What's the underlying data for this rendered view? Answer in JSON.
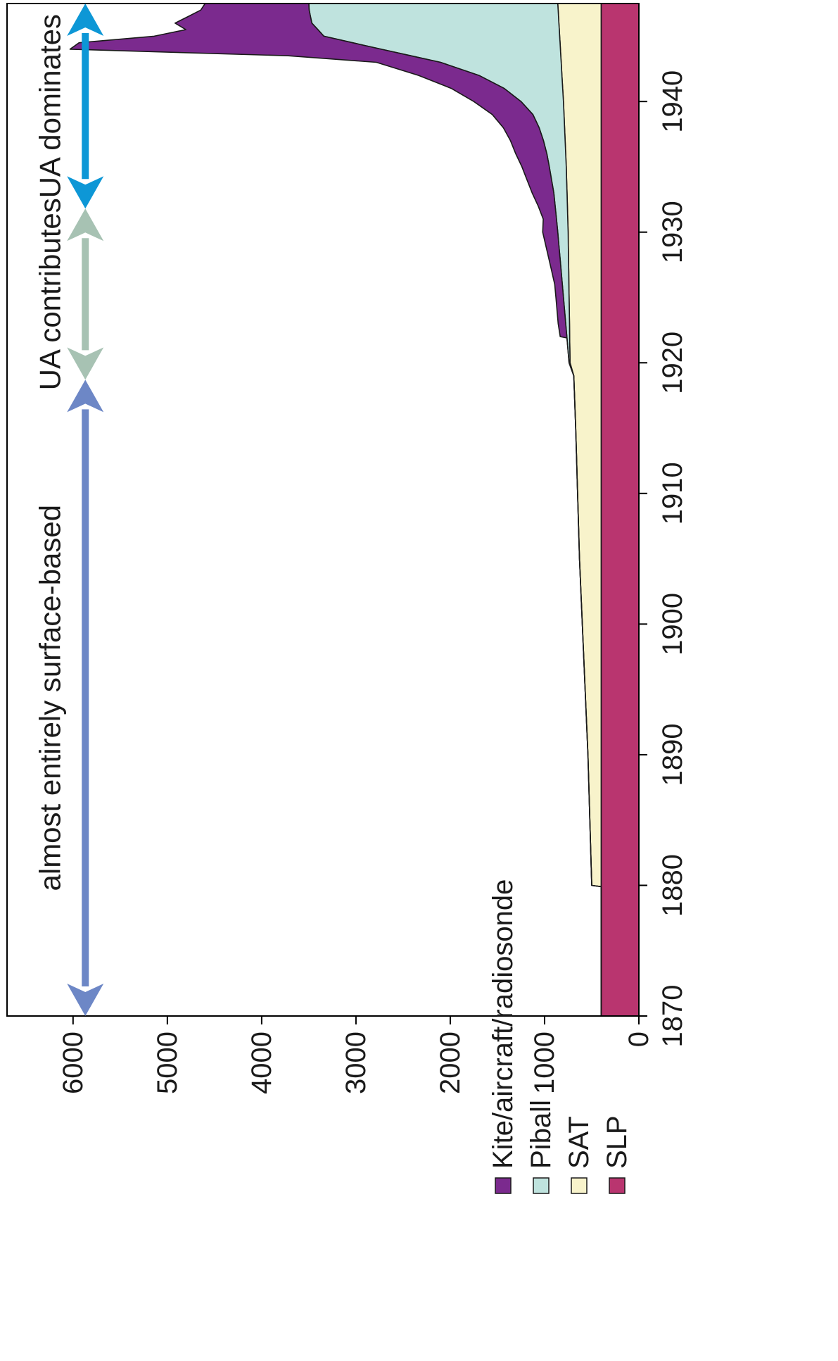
{
  "chart_data": {
    "type": "area",
    "stacked": true,
    "orientation": "rotated-90",
    "x_range": [
      1870,
      1947.5
    ],
    "y_range": [
      0,
      6700
    ],
    "x_ticks": [
      1870,
      1880,
      1890,
      1900,
      1910,
      1920,
      1930,
      1940
    ],
    "y_ticks": [
      0,
      1000,
      2000,
      3000,
      4000,
      5000,
      6000
    ],
    "x_tick_labels": [
      "1870",
      "1880",
      "1890",
      "1900",
      "1910",
      "1920",
      "1930",
      "1940"
    ],
    "y_tick_labels": [
      "0",
      "1000",
      "2000",
      "3000",
      "4000",
      "5000",
      "6000"
    ],
    "legend": {
      "placement": "bottom-left",
      "entries": [
        {
          "label": "Kite/aircraft/radiosonde",
          "color": "#7b2a8e"
        },
        {
          "label": "Piball",
          "color": "#bfe3de"
        },
        {
          "label": "SAT",
          "color": "#f8f3cb"
        },
        {
          "label": "SLP",
          "color": "#b9356f"
        }
      ]
    },
    "annotations": [
      {
        "text": "almost entirely surface-based",
        "x_from": 1870,
        "x_to": 1918.7,
        "y": 5870,
        "color": "#6d87c6"
      },
      {
        "text": "UA contributes",
        "x_from": 1918.7,
        "x_to": 1931.8,
        "y": 5870,
        "color": "#a7c2b3"
      },
      {
        "text": "UA dominates",
        "x_from": 1931.8,
        "x_to": 1947.5,
        "y": 5870,
        "color": "#0d97d6"
      }
    ],
    "series": [
      {
        "name": "SLP",
        "color": "#b9356f",
        "x": [
          1870,
          1911.2,
          1911.3,
          1947.5
        ],
        "y": [
          400,
          400,
          400,
          400
        ]
      },
      {
        "name": "SAT",
        "color": "#f8f3cb",
        "x": [
          1870,
          1879.9,
          1880.0,
          1885,
          1890,
          1895,
          1900,
          1905,
          1910,
          1915,
          1919,
          1920,
          1925,
          1930,
          1935,
          1940,
          1945,
          1947.5
        ],
        "y": [
          0,
          0,
          100,
          120,
          140,
          170,
          200,
          230,
          250,
          270,
          290,
          330,
          340,
          350,
          370,
          400,
          440,
          460
        ]
      },
      {
        "name": "Piball",
        "color": "#bfe3de",
        "x": [
          1870,
          1919,
          1920,
          1921,
          1922,
          1923,
          1924,
          1925,
          1926,
          1927,
          1928,
          1929,
          1930,
          1931,
          1932,
          1933,
          1934,
          1935,
          1936,
          1937,
          1938,
          1939,
          1940,
          1941,
          1942,
          1943,
          1944,
          1945,
          1946,
          1947,
          1947.5
        ],
        "y": [
          0,
          0,
          10,
          20,
          30,
          40,
          50,
          60,
          70,
          80,
          90,
          100,
          110,
          120,
          130,
          140,
          160,
          180,
          200,
          230,
          270,
          330,
          450,
          620,
          880,
          1280,
          1900,
          2500,
          2620,
          2640,
          2640
        ]
      },
      {
        "name": "Kite/aircraft/radiosonde",
        "color": "#7b2a8e",
        "x": [
          1870,
          1921.9,
          1922,
          1923,
          1924,
          1925,
          1926,
          1927,
          1928,
          1929,
          1930,
          1931,
          1932,
          1933,
          1934,
          1935,
          1936,
          1937,
          1938,
          1939,
          1940,
          1941,
          1942,
          1943,
          1943.5,
          1944,
          1944.5,
          1945,
          1945.5,
          1946,
          1946.5,
          1947,
          1947.5
        ],
        "y": [
          0,
          0,
          70,
          80,
          80,
          80,
          80,
          100,
          120,
          140,
          160,
          140,
          180,
          230,
          260,
          290,
          330,
          350,
          380,
          430,
          500,
          560,
          640,
          680,
          1300,
          3300,
          2900,
          1800,
          1400,
          1450,
          1300,
          1150,
          1100
        ]
      }
    ]
  }
}
